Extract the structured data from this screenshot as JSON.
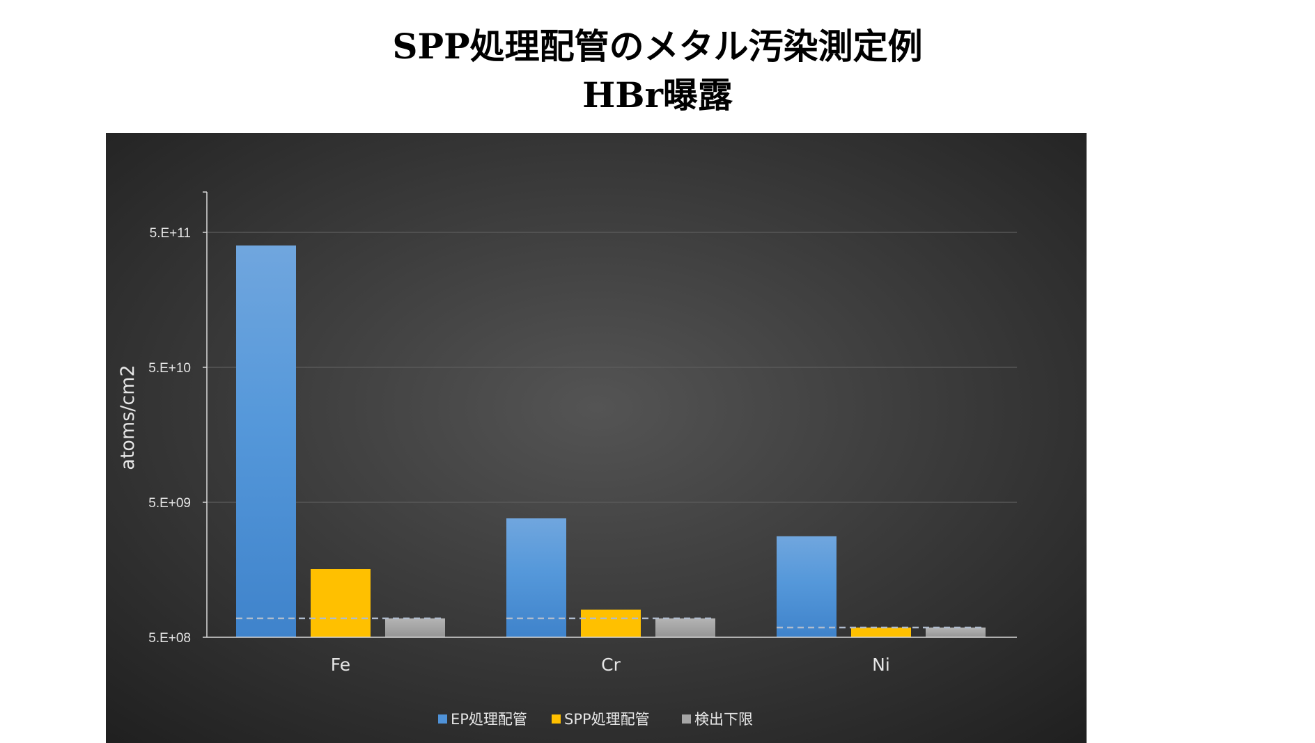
{
  "slide": {
    "title_line1": "SPP処理配管のメタル汚染測定例",
    "title_line2": "HBr曝露"
  },
  "colors": {
    "background": "#ffffff",
    "plot_background_center": "#545454",
    "plot_background_edge": "#1f1f1f",
    "ep_series": "#4f92d8",
    "spp_series": "#ffc000",
    "limit_series": "#a6a6a6",
    "text": "#e6e6e6",
    "axis": "#d9d9d9",
    "gridline": "#5d5d5d",
    "dashed_line": "#b0bccd"
  },
  "chart_data": {
    "type": "bar",
    "title": "",
    "xlabel": "",
    "ylabel": "atoms/cm2",
    "y_scale": "log",
    "ylim": [
      500000000,
      1000000000000
    ],
    "y_ticks": [
      500000000,
      5000000000,
      50000000000,
      500000000000
    ],
    "y_tick_labels": [
      "5.E+08",
      "5.E+09",
      "5.E+10",
      "5.E+11"
    ],
    "categories": [
      "Fe",
      "Cr",
      "Ni"
    ],
    "series": [
      {
        "name": "EP処理配管",
        "color": "#4f92d8",
        "values": [
          400000000000,
          3800000000,
          2800000000
        ]
      },
      {
        "name": "SPP処理配管",
        "color": "#ffc000",
        "values": [
          1600000000,
          800000000,
          590000000
        ]
      },
      {
        "name": "検出下限",
        "color": "#a6a6a6",
        "values": [
          690000000,
          690000000,
          590000000
        ]
      }
    ],
    "dashed_reference_values": [
      690000000,
      690000000,
      590000000
    ],
    "grid": true,
    "legend_position": "bottom"
  }
}
